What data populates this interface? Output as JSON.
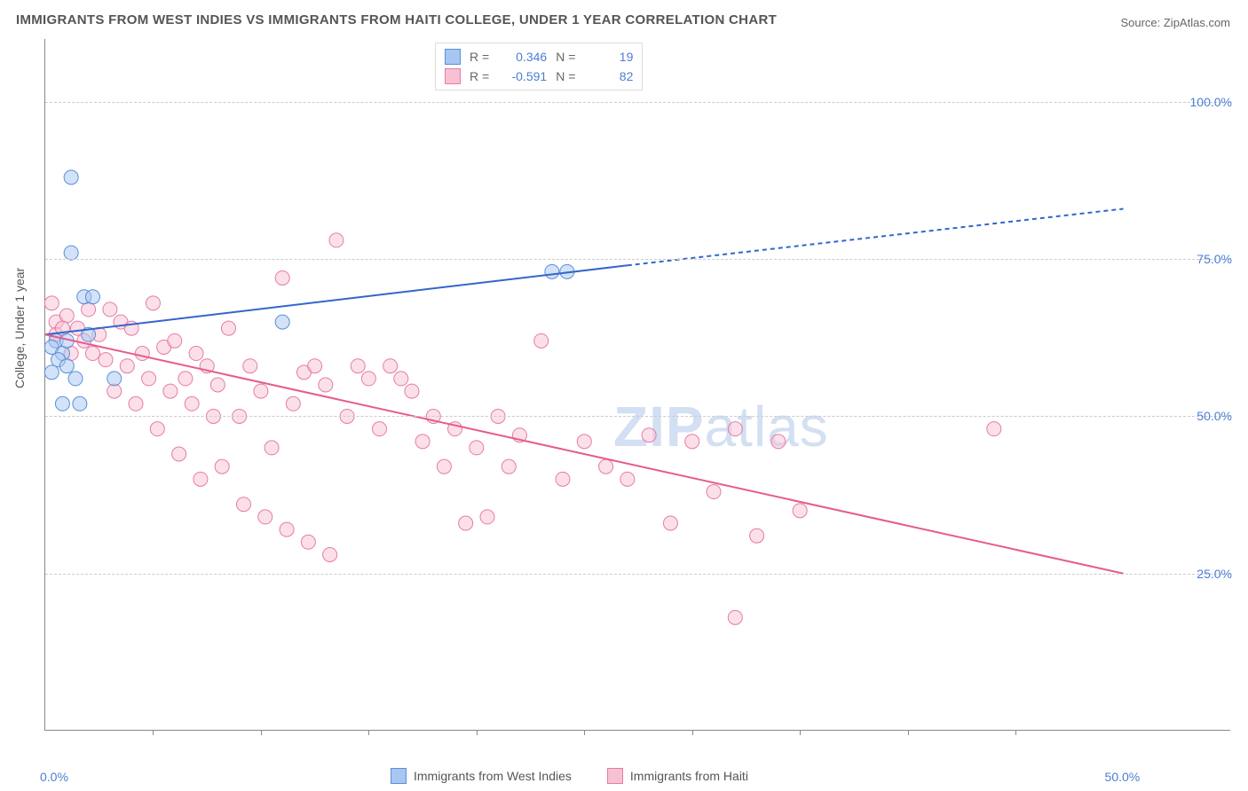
{
  "title": "IMMIGRANTS FROM WEST INDIES VS IMMIGRANTS FROM HAITI COLLEGE, UNDER 1 YEAR CORRELATION CHART",
  "source": "Source: ZipAtlas.com",
  "ylabel": "College, Under 1 year",
  "watermark_a": "ZIP",
  "watermark_b": "atlas",
  "colors": {
    "series1_fill": "#a7c6f2",
    "series1_stroke": "#5a8fd6",
    "series2_fill": "#f7c1d3",
    "series2_stroke": "#e77ba5",
    "line1": "#3366cc",
    "line2": "#e85a8a",
    "grid": "#cccccc",
    "axis": "#888888",
    "tick": "#4a7fd4",
    "text": "#555555"
  },
  "chart": {
    "type": "scatter-with-regression",
    "xlim": [
      0,
      55
    ],
    "ylim": [
      0,
      110
    ],
    "ytick_labels": [
      "25.0%",
      "50.0%",
      "75.0%",
      "100.0%"
    ],
    "ytick_vals": [
      25,
      50,
      75,
      100
    ],
    "xtick_labels": [
      "0.0%",
      "50.0%"
    ],
    "xtick_vals": [
      0,
      50
    ],
    "xtick_minor": [
      5,
      10,
      15,
      20,
      25,
      30,
      35,
      40,
      45
    ],
    "legend_top": [
      {
        "swatch_fill": "#a7c6f2",
        "swatch_stroke": "#5a8fd6",
        "r_label": "R =",
        "r": "0.346",
        "n_label": "N =",
        "n": "19"
      },
      {
        "swatch_fill": "#f7c1d3",
        "swatch_stroke": "#e77ba5",
        "r_label": "R =",
        "r": "-0.591",
        "n_label": "N =",
        "n": "82"
      }
    ],
    "legend_bottom": [
      {
        "swatch_fill": "#a7c6f2",
        "swatch_stroke": "#5a8fd6",
        "label": "Immigrants from West Indies"
      },
      {
        "swatch_fill": "#f7c1d3",
        "swatch_stroke": "#e77ba5",
        "label": "Immigrants from Haiti"
      }
    ],
    "series1_points": [
      [
        1.2,
        88
      ],
      [
        1.2,
        76
      ],
      [
        1.8,
        69
      ],
      [
        2.2,
        69
      ],
      [
        0.5,
        62
      ],
      [
        0.3,
        61
      ],
      [
        0.8,
        60
      ],
      [
        0.6,
        59
      ],
      [
        1.0,
        58
      ],
      [
        0.3,
        57
      ],
      [
        1.4,
        56
      ],
      [
        3.2,
        56
      ],
      [
        1.6,
        52
      ],
      [
        0.8,
        52
      ],
      [
        11,
        65
      ],
      [
        23.5,
        73
      ],
      [
        24.2,
        73
      ],
      [
        1.0,
        62
      ],
      [
        2.0,
        63
      ]
    ],
    "series2_points": [
      [
        0.3,
        68
      ],
      [
        0.5,
        65
      ],
      [
        1.0,
        66
      ],
      [
        1.5,
        64
      ],
      [
        2,
        67
      ],
      [
        2.5,
        63
      ],
      [
        3,
        67
      ],
      [
        3.5,
        65
      ],
      [
        4,
        64
      ],
      [
        4.5,
        60
      ],
      [
        5,
        68
      ],
      [
        5.5,
        61
      ],
      [
        6,
        62
      ],
      [
        6.5,
        56
      ],
      [
        7,
        60
      ],
      [
        7.5,
        58
      ],
      [
        8,
        55
      ],
      [
        8.5,
        64
      ],
      [
        9,
        50
      ],
      [
        9.5,
        58
      ],
      [
        10,
        54
      ],
      [
        10.5,
        45
      ],
      [
        11,
        72
      ],
      [
        11.5,
        52
      ],
      [
        12,
        57
      ],
      [
        12.5,
        58
      ],
      [
        13,
        55
      ],
      [
        13.5,
        78
      ],
      [
        14,
        50
      ],
      [
        14.5,
        58
      ],
      [
        15,
        56
      ],
      [
        15.5,
        48
      ],
      [
        16,
        58
      ],
      [
        16.5,
        56
      ],
      [
        17,
        54
      ],
      [
        17.5,
        46
      ],
      [
        18,
        50
      ],
      [
        18.5,
        42
      ],
      [
        19,
        48
      ],
      [
        19.5,
        33
      ],
      [
        20,
        45
      ],
      [
        20.5,
        34
      ],
      [
        21,
        50
      ],
      [
        21.5,
        42
      ],
      [
        22,
        47
      ],
      [
        23,
        62
      ],
      [
        24,
        40
      ],
      [
        25,
        46
      ],
      [
        26,
        42
      ],
      [
        27,
        40
      ],
      [
        28,
        47
      ],
      [
        29,
        33
      ],
      [
        30,
        46
      ],
      [
        31,
        38
      ],
      [
        32,
        48
      ],
      [
        33,
        31
      ],
      [
        34,
        46
      ],
      [
        35,
        35
      ],
      [
        44,
        48
      ],
      [
        0.5,
        63
      ],
      [
        1.2,
        60
      ],
      [
        2.8,
        59
      ],
      [
        3.2,
        54
      ],
      [
        4.2,
        52
      ],
      [
        5.2,
        48
      ],
      [
        6.2,
        44
      ],
      [
        7.2,
        40
      ],
      [
        8.2,
        42
      ],
      [
        9.2,
        36
      ],
      [
        10.2,
        34
      ],
      [
        11.2,
        32
      ],
      [
        12.2,
        30
      ],
      [
        13.2,
        28
      ],
      [
        0.8,
        64
      ],
      [
        1.8,
        62
      ],
      [
        2.2,
        60
      ],
      [
        3.8,
        58
      ],
      [
        4.8,
        56
      ],
      [
        5.8,
        54
      ],
      [
        6.8,
        52
      ],
      [
        7.8,
        50
      ],
      [
        32,
        18
      ]
    ],
    "series1_line": {
      "x1": 0,
      "y1": 63,
      "x2": 27,
      "y2": 74,
      "dash_from_x": 27,
      "dash_x2": 50,
      "dash_y2": 83
    },
    "series2_line": {
      "x1": 0,
      "y1": 63,
      "x2": 50,
      "y2": 25
    },
    "marker_r": 8,
    "marker_opacity": 0.5
  }
}
